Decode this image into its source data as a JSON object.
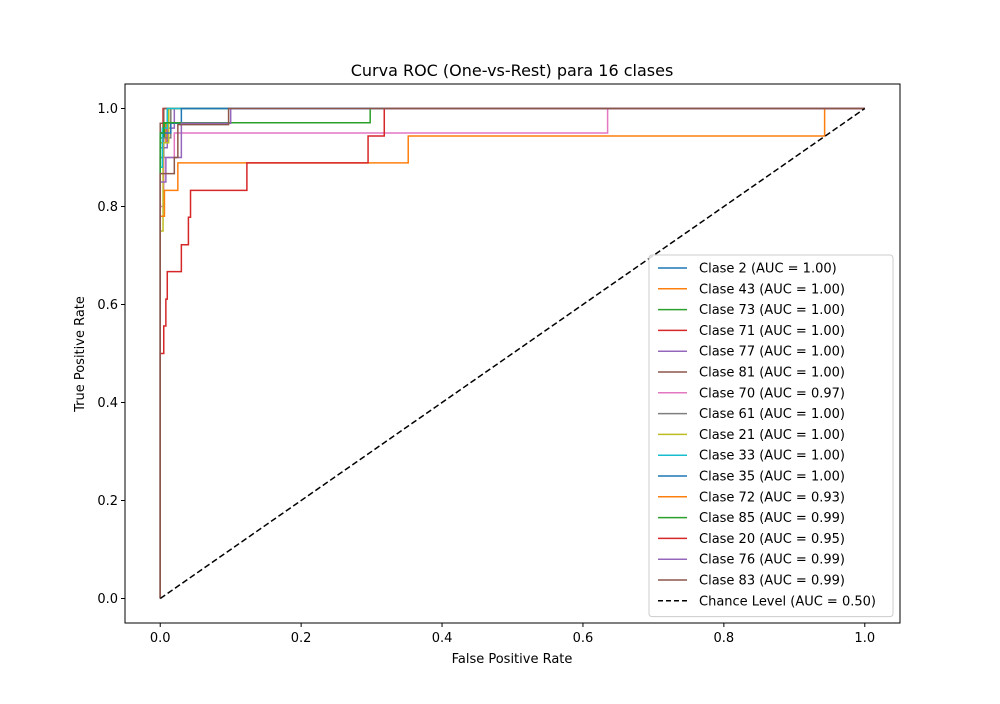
{
  "chart_data": {
    "type": "line",
    "title": "Curva ROC (One-vs-Rest) para 16 clases",
    "xlabel": "False Positive Rate",
    "ylabel": "True Positive Rate",
    "xlim": [
      -0.05,
      1.05
    ],
    "ylim": [
      -0.05,
      1.05
    ],
    "xticks": [
      "0.0",
      "0.2",
      "0.4",
      "0.6",
      "0.8",
      "1.0"
    ],
    "yticks": [
      "0.0",
      "0.2",
      "0.4",
      "0.6",
      "0.8",
      "1.0"
    ],
    "grid": false,
    "legend_position": "lower-right",
    "series": [
      {
        "name": "Clase 2 (AUC = 1.00)",
        "color": "#1f77b4",
        "dash": false,
        "points": [
          [
            0,
            0
          ],
          [
            0,
            0.9
          ],
          [
            0.005,
            0.9
          ],
          [
            0.005,
            0.95
          ],
          [
            0.01,
            0.95
          ],
          [
            0.01,
            1.0
          ],
          [
            1,
            1
          ]
        ]
      },
      {
        "name": "Clase 43 (AUC = 1.00)",
        "color": "#ff7f0e",
        "dash": false,
        "points": [
          [
            0,
            0
          ],
          [
            0,
            0.93
          ],
          [
            0.008,
            0.93
          ],
          [
            0.008,
            0.97
          ],
          [
            0.015,
            0.97
          ],
          [
            0.015,
            1.0
          ],
          [
            1,
            1
          ]
        ]
      },
      {
        "name": "Clase 73 (AUC = 1.00)",
        "color": "#2ca02c",
        "dash": false,
        "points": [
          [
            0,
            0
          ],
          [
            0,
            0.94
          ],
          [
            0.006,
            0.94
          ],
          [
            0.006,
            0.97
          ],
          [
            0.012,
            0.97
          ],
          [
            0.012,
            1.0
          ],
          [
            1,
            1
          ]
        ]
      },
      {
        "name": "Clase 71 (AUC = 1.00)",
        "color": "#d62728",
        "dash": false,
        "points": [
          [
            0,
            0
          ],
          [
            0,
            0.95
          ],
          [
            0.004,
            0.95
          ],
          [
            0.004,
            1.0
          ],
          [
            1,
            1
          ]
        ]
      },
      {
        "name": "Clase 77 (AUC = 1.00)",
        "color": "#9467bd",
        "dash": false,
        "points": [
          [
            0,
            0
          ],
          [
            0,
            0.92
          ],
          [
            0.01,
            0.92
          ],
          [
            0.01,
            0.96
          ],
          [
            0.02,
            0.96
          ],
          [
            0.02,
            1.0
          ],
          [
            1,
            1
          ]
        ]
      },
      {
        "name": "Clase 81 (AUC = 1.00)",
        "color": "#8c564b",
        "dash": false,
        "points": [
          [
            0,
            0
          ],
          [
            0,
            0.97
          ],
          [
            0.005,
            0.97
          ],
          [
            0.005,
            1.0
          ],
          [
            1,
            1
          ]
        ]
      },
      {
        "name": "Clase 70 (AUC = 0.97)",
        "color": "#e377c2",
        "dash": false,
        "points": [
          [
            0,
            0
          ],
          [
            0,
            0.8
          ],
          [
            0.005,
            0.8
          ],
          [
            0.005,
            0.9
          ],
          [
            0.02,
            0.9
          ],
          [
            0.02,
            0.95
          ],
          [
            0.635,
            0.95
          ],
          [
            0.635,
            1.0
          ],
          [
            1,
            1
          ]
        ]
      },
      {
        "name": "Clase 61 (AUC = 1.00)",
        "color": "#7f7f7f",
        "dash": false,
        "points": [
          [
            0,
            0
          ],
          [
            0,
            0.9
          ],
          [
            0.005,
            0.9
          ],
          [
            0.005,
            0.94
          ],
          [
            0.015,
            0.94
          ],
          [
            0.015,
            1.0
          ],
          [
            1,
            1
          ]
        ]
      },
      {
        "name": "Clase 21 (AUC = 1.00)",
        "color": "#bcbd22",
        "dash": false,
        "points": [
          [
            0,
            0
          ],
          [
            0,
            0.75
          ],
          [
            0.004,
            0.75
          ],
          [
            0.004,
            0.93
          ],
          [
            0.012,
            0.93
          ],
          [
            0.012,
            1.0
          ],
          [
            1,
            1
          ]
        ]
      },
      {
        "name": "Clase 33 (AUC = 1.00)",
        "color": "#17becf",
        "dash": false,
        "points": [
          [
            0,
            0
          ],
          [
            0,
            0.88
          ],
          [
            0.003,
            0.88
          ],
          [
            0.003,
            0.96
          ],
          [
            0.01,
            0.96
          ],
          [
            0.01,
            1.0
          ],
          [
            1,
            1
          ]
        ]
      },
      {
        "name": "Clase 35 (AUC = 1.00)",
        "color": "#1f77b4",
        "dash": false,
        "points": [
          [
            0,
            0
          ],
          [
            0,
            0.95
          ],
          [
            0.015,
            0.95
          ],
          [
            0.015,
            0.97
          ],
          [
            0.03,
            0.97
          ],
          [
            0.03,
            1.0
          ],
          [
            1,
            1
          ]
        ]
      },
      {
        "name": "Clase 72 (AUC = 0.93)",
        "color": "#ff7f0e",
        "dash": false,
        "points": [
          [
            0,
            0
          ],
          [
            0,
            0.78
          ],
          [
            0.006,
            0.78
          ],
          [
            0.006,
            0.833
          ],
          [
            0.025,
            0.833
          ],
          [
            0.025,
            0.889
          ],
          [
            0.352,
            0.889
          ],
          [
            0.352,
            0.944
          ],
          [
            0.943,
            0.944
          ],
          [
            0.943,
            1.0
          ],
          [
            1,
            1
          ]
        ]
      },
      {
        "name": "Clase 85 (AUC = 0.99)",
        "color": "#2ca02c",
        "dash": false,
        "points": [
          [
            0,
            0
          ],
          [
            0,
            0.95
          ],
          [
            0.005,
            0.95
          ],
          [
            0.005,
            0.971
          ],
          [
            0.298,
            0.971
          ],
          [
            0.298,
            1.0
          ],
          [
            1,
            1
          ]
        ]
      },
      {
        "name": "Clase 20 (AUC = 0.95)",
        "color": "#d62728",
        "dash": false,
        "points": [
          [
            0,
            0
          ],
          [
            0,
            0.5
          ],
          [
            0.005,
            0.5
          ],
          [
            0.005,
            0.556
          ],
          [
            0.008,
            0.556
          ],
          [
            0.008,
            0.611
          ],
          [
            0.01,
            0.611
          ],
          [
            0.01,
            0.667
          ],
          [
            0.03,
            0.667
          ],
          [
            0.03,
            0.722
          ],
          [
            0.04,
            0.722
          ],
          [
            0.04,
            0.778
          ],
          [
            0.043,
            0.778
          ],
          [
            0.043,
            0.833
          ],
          [
            0.123,
            0.833
          ],
          [
            0.123,
            0.889
          ],
          [
            0.295,
            0.889
          ],
          [
            0.295,
            0.944
          ],
          [
            0.318,
            0.944
          ],
          [
            0.318,
            1.0
          ],
          [
            1,
            1
          ]
        ]
      },
      {
        "name": "Clase 76 (AUC = 0.99)",
        "color": "#9467bd",
        "dash": false,
        "points": [
          [
            0,
            0
          ],
          [
            0,
            0.85
          ],
          [
            0.008,
            0.85
          ],
          [
            0.008,
            0.9
          ],
          [
            0.03,
            0.9
          ],
          [
            0.03,
            0.97
          ],
          [
            0.1,
            0.97
          ],
          [
            0.1,
            1.0
          ],
          [
            1,
            1
          ]
        ]
      },
      {
        "name": "Clase 83 (AUC = 0.99)",
        "color": "#8c564b",
        "dash": false,
        "points": [
          [
            0,
            0
          ],
          [
            0,
            0.867
          ],
          [
            0.02,
            0.867
          ],
          [
            0.02,
            0.9
          ],
          [
            0.025,
            0.9
          ],
          [
            0.025,
            0.967
          ],
          [
            0.097,
            0.967
          ],
          [
            0.097,
            1.0
          ],
          [
            1,
            1
          ]
        ]
      },
      {
        "name": "Chance Level (AUC = 0.50)",
        "color": "#000000",
        "dash": true,
        "points": [
          [
            0,
            0
          ],
          [
            1,
            1
          ]
        ]
      }
    ]
  }
}
